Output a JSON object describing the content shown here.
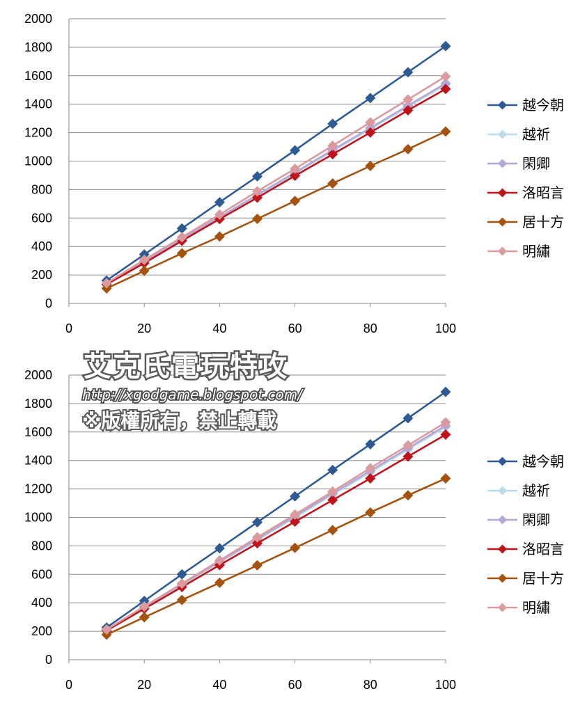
{
  "chart_data": [
    {
      "type": "line",
      "x": [
        10,
        20,
        30,
        40,
        50,
        60,
        70,
        80,
        90,
        100
      ],
      "xlim": [
        0,
        100
      ],
      "ylim": [
        0,
        2000
      ],
      "xticks": [
        "0",
        "20",
        "40",
        "60",
        "80",
        "100"
      ],
      "yticks": [
        "0",
        "200",
        "400",
        "600",
        "800",
        "1000",
        "1200",
        "1400",
        "1600",
        "1800",
        "2000"
      ],
      "grid": "horizontal",
      "legend_position": "right",
      "series": [
        {
          "name": "越今朝",
          "color": "#2f5b95",
          "values": [
            161,
            344,
            527,
            711,
            893,
            1076,
            1262,
            1443,
            1625,
            1808
          ]
        },
        {
          "name": "越祈",
          "color": "#b8dde8",
          "values": [
            138,
            292,
            447,
            602,
            757,
            912,
            1070,
            1225,
            1381,
            1536
          ]
        },
        {
          "name": "閑卿",
          "color": "#b4a7d6",
          "values": [
            140,
            295,
            452,
            607,
            763,
            920,
            1078,
            1233,
            1390,
            1546
          ]
        },
        {
          "name": "洛昭言",
          "color": "#c0141c",
          "values": [
            134,
            283,
            440,
            593,
            743,
            897,
            1048,
            1201,
            1357,
            1507
          ]
        },
        {
          "name": "居十方",
          "color": "#a5520f",
          "values": [
            105,
            229,
            352,
            470,
            594,
            720,
            843,
            966,
            1084,
            1208
          ]
        },
        {
          "name": "明繡",
          "color": "#da9a9e",
          "values": [
            142,
            306,
            465,
            624,
            788,
            946,
            1108,
            1272,
            1433,
            1595
          ]
        }
      ]
    },
    {
      "type": "line",
      "x": [
        10,
        20,
        30,
        40,
        50,
        60,
        70,
        80,
        90,
        100
      ],
      "xlim": [
        0,
        100
      ],
      "ylim": [
        0,
        2000
      ],
      "xticks": [
        "0",
        "20",
        "40",
        "60",
        "80",
        "100"
      ],
      "yticks": [
        "0",
        "200",
        "400",
        "600",
        "800",
        "1000",
        "1200",
        "1400",
        "1600",
        "1800",
        "2000"
      ],
      "grid": "horizontal",
      "legend_position": "right",
      "series": [
        {
          "name": "越今朝",
          "color": "#2f5b95",
          "values": [
            226,
            413,
            600,
            783,
            966,
            1148,
            1333,
            1514,
            1697,
            1882
          ]
        },
        {
          "name": "越祈",
          "color": "#b8dde8",
          "values": [
            208,
            368,
            525,
            683,
            840,
            1000,
            1160,
            1317,
            1477,
            1635
          ]
        },
        {
          "name": "閑卿",
          "color": "#b4a7d6",
          "values": [
            210,
            372,
            530,
            690,
            848,
            1008,
            1168,
            1327,
            1487,
            1645
          ]
        },
        {
          "name": "洛昭言",
          "color": "#c0141c",
          "values": [
            205,
            358,
            511,
            665,
            818,
            970,
            1122,
            1274,
            1428,
            1582
          ]
        },
        {
          "name": "居十方",
          "color": "#a5520f",
          "values": [
            176,
            298,
            420,
            541,
            663,
            786,
            911,
            1035,
            1155,
            1274
          ]
        },
        {
          "name": "明繡",
          "color": "#da9a9e",
          "values": [
            212,
            374,
            535,
            698,
            860,
            1020,
            1182,
            1346,
            1506,
            1668
          ]
        }
      ]
    }
  ],
  "watermark": {
    "title": "艾克氏電玩特攻",
    "url": "http://xgodgame.blogspot.com/",
    "copyright": "※版權所有，禁止轉載"
  }
}
